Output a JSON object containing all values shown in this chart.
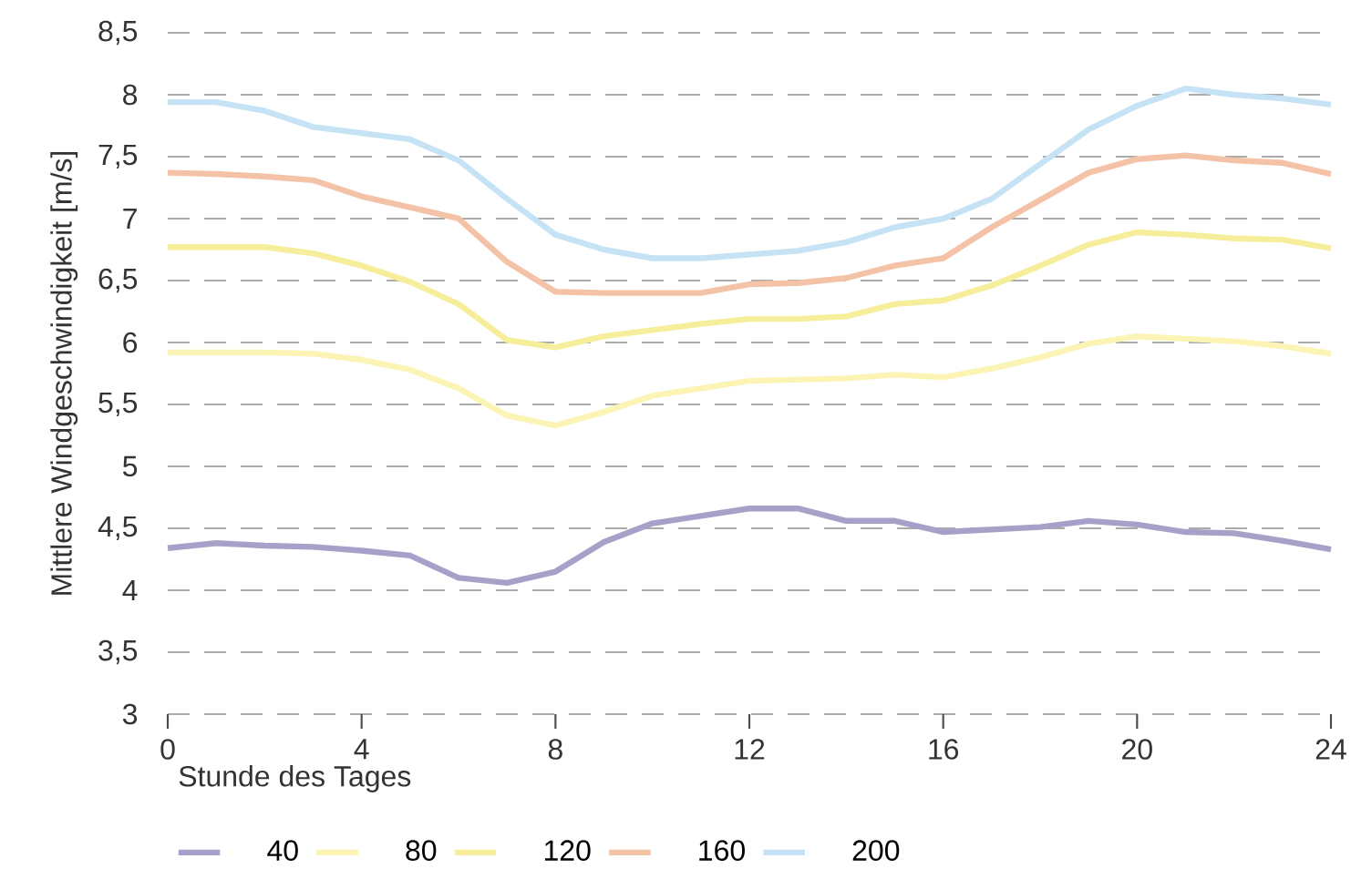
{
  "chart_data": {
    "type": "line",
    "xlabel": "Stunde des Tages",
    "ylabel": "Mittlere Windgeschwindigkeit [m/s]",
    "x": [
      0,
      1,
      2,
      3,
      4,
      5,
      6,
      7,
      8,
      9,
      10,
      11,
      12,
      13,
      14,
      15,
      16,
      17,
      18,
      19,
      20,
      21,
      22,
      23,
      24
    ],
    "series": [
      {
        "name": "40",
        "color": "#a8a0c8",
        "values": [
          4.34,
          4.38,
          4.36,
          4.35,
          4.32,
          4.28,
          4.1,
          4.06,
          4.15,
          4.39,
          4.54,
          4.6,
          4.66,
          4.66,
          4.56,
          4.56,
          4.47,
          4.49,
          4.51,
          4.56,
          4.53,
          4.47,
          4.46,
          4.4,
          4.33
        ]
      },
      {
        "name": "80",
        "color": "#fbf4b4",
        "values": [
          5.92,
          5.92,
          5.92,
          5.91,
          5.86,
          5.78,
          5.63,
          5.41,
          5.33,
          5.44,
          5.57,
          5.63,
          5.69,
          5.7,
          5.71,
          5.74,
          5.72,
          5.79,
          5.88,
          5.99,
          6.05,
          6.03,
          6.01,
          5.97,
          5.91
        ]
      },
      {
        "name": "120",
        "color": "#f6ee9a",
        "values": [
          6.77,
          6.77,
          6.77,
          6.72,
          6.62,
          6.49,
          6.31,
          6.02,
          5.96,
          6.05,
          6.1,
          6.15,
          6.19,
          6.19,
          6.21,
          6.31,
          6.34,
          6.46,
          6.62,
          6.79,
          6.89,
          6.87,
          6.84,
          6.83,
          6.76
        ]
      },
      {
        "name": "160",
        "color": "#f4c2a6",
        "values": [
          7.37,
          7.36,
          7.34,
          7.31,
          7.18,
          7.09,
          7.0,
          6.65,
          6.41,
          6.4,
          6.4,
          6.4,
          6.47,
          6.48,
          6.52,
          6.62,
          6.68,
          6.93,
          7.15,
          7.37,
          7.48,
          7.51,
          7.47,
          7.45,
          7.36
        ]
      },
      {
        "name": "200",
        "color": "#c6e2f5",
        "values": [
          7.94,
          7.94,
          7.87,
          7.74,
          7.69,
          7.64,
          7.47,
          7.16,
          6.87,
          6.75,
          6.68,
          6.68,
          6.71,
          6.74,
          6.81,
          6.93,
          7.0,
          7.16,
          7.44,
          7.72,
          7.91,
          8.05,
          8.0,
          7.97,
          7.92
        ]
      }
    ],
    "xlim": [
      0,
      24
    ],
    "xticks": [
      0,
      4,
      8,
      12,
      16,
      20,
      24
    ],
    "ylim": [
      3,
      8.5
    ],
    "yticks": [
      3,
      {
        "value": 3.5,
        "label": "3,5"
      },
      4,
      {
        "value": 4.5,
        "label": "4,5"
      },
      5,
      {
        "value": 5.5,
        "label": "5,5"
      },
      6,
      {
        "value": 6.5,
        "label": "6,5"
      },
      7,
      {
        "value": 7.5,
        "label": "7,5"
      },
      8,
      {
        "value": 8.5,
        "label": "8,5"
      }
    ],
    "grid": "y",
    "line_style": "solid",
    "legend": "bottom"
  }
}
